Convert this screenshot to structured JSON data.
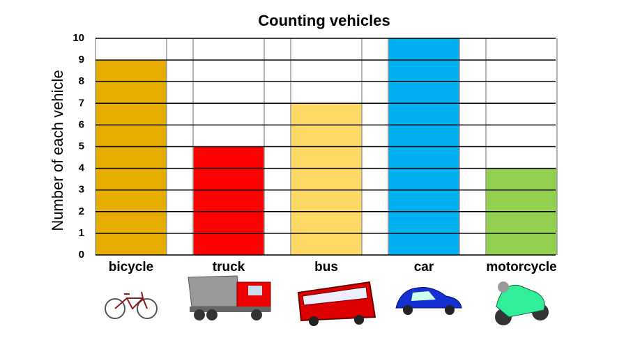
{
  "chart_data": {
    "type": "bar",
    "title": "Counting vehicles",
    "y_label": "Number of each vehicle",
    "categories": [
      "bicycle",
      "truck",
      "bus",
      "car",
      "motorcycle"
    ],
    "values": [
      9,
      5,
      7,
      10,
      4
    ],
    "colors": [
      "#e6ac00",
      "#ff0000",
      "#ffd966",
      "#00b0f0",
      "#92d050"
    ],
    "ylim": [
      0,
      10
    ],
    "yticks": [
      0,
      1,
      2,
      3,
      4,
      5,
      6,
      7,
      8,
      9,
      10
    ],
    "grid": true
  }
}
